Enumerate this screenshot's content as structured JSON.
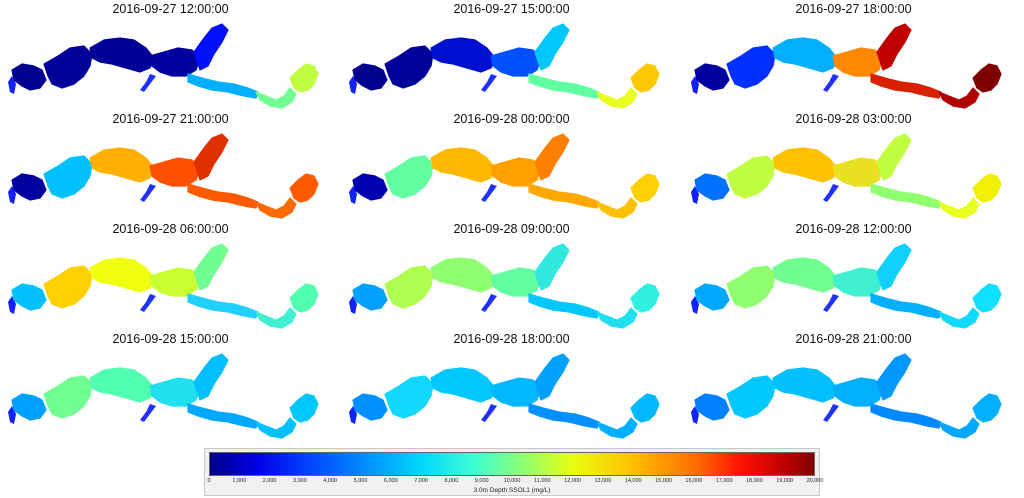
{
  "panels": [
    {
      "time": "2016-09-27 12:00:00",
      "colors": [
        "#000090",
        "#00009a",
        "#000096",
        "#0000a0",
        "#0010ff",
        "#00b0ff",
        "#70ff90",
        "#c0ff40"
      ]
    },
    {
      "time": "2016-09-27 15:00:00",
      "colors": [
        "#000090",
        "#00009a",
        "#0010d0",
        "#0050ff",
        "#00c8ff",
        "#60ffa0",
        "#e8ff20",
        "#ffc800"
      ]
    },
    {
      "time": "2016-09-27 18:00:00",
      "colors": [
        "#0000a0",
        "#0030ff",
        "#00b0ff",
        "#ff8800",
        "#c00000",
        "#d82000",
        "#b00000",
        "#800000"
      ]
    },
    {
      "time": "2016-09-27 21:00:00",
      "colors": [
        "#0000a0",
        "#00c0ff",
        "#ffb000",
        "#ff5000",
        "#e03000",
        "#ff5a00",
        "#ff6a00",
        "#ff5a00"
      ]
    },
    {
      "time": "2016-09-28 00:00:00",
      "colors": [
        "#0000b0",
        "#60ffa0",
        "#ffb800",
        "#ffa000",
        "#ff8000",
        "#ffa800",
        "#ffc000",
        "#ffd000"
      ]
    },
    {
      "time": "2016-09-28 03:00:00",
      "colors": [
        "#0070ff",
        "#c0ff40",
        "#ffc000",
        "#e8e020",
        "#c0ff40",
        "#90ff70",
        "#e8ff20",
        "#f0f000"
      ]
    },
    {
      "time": "2016-09-28 06:00:00",
      "colors": [
        "#00c0ff",
        "#ffd000",
        "#f0ff10",
        "#c8ff30",
        "#70ff90",
        "#20d0ff",
        "#40f0d0",
        "#50ffb0"
      ]
    },
    {
      "time": "2016-09-28 09:00:00",
      "colors": [
        "#00a0ff",
        "#b0ff50",
        "#90ff70",
        "#60ffa0",
        "#30e8e0",
        "#00c8ff",
        "#20e0ef",
        "#30f0df"
      ]
    },
    {
      "time": "2016-09-28 12:00:00",
      "colors": [
        "#00a8ff",
        "#90ff70",
        "#70ff90",
        "#40f0d0",
        "#10d0ff",
        "#00b0ff",
        "#10d8ff",
        "#10e0ff"
      ]
    },
    {
      "time": "2016-09-28 15:00:00",
      "colors": [
        "#00a0ff",
        "#70ff90",
        "#50ffb0",
        "#20e0ef",
        "#00c0ff",
        "#00a8ff",
        "#00c0ff",
        "#00c8ff"
      ]
    },
    {
      "time": "2016-09-28 18:00:00",
      "colors": [
        "#0090ff",
        "#10d8ff",
        "#00c8ff",
        "#00b8ff",
        "#00a0ff",
        "#0090ff",
        "#00b0ff",
        "#00b8ff"
      ]
    },
    {
      "time": "2016-09-28 21:00:00",
      "colors": [
        "#0080ff",
        "#00c8ff",
        "#00c0ff",
        "#00b0ff",
        "#0098ff",
        "#0088ff",
        "#00a8ff",
        "#00b0ff"
      ]
    }
  ],
  "legend": {
    "label": "3.0m Depth SSOL1 (mg/L)",
    "min": 0,
    "max": 20000,
    "ticks": [
      "0",
      "1,000",
      "2,000",
      "3,000",
      "4,000",
      "5,000",
      "6,000",
      "7,000",
      "8,000",
      "9,000",
      "10,000",
      "11,000",
      "12,000",
      "13,000",
      "14,000",
      "15,000",
      "16,000",
      "17,000",
      "18,000",
      "19,000",
      "20,000"
    ]
  }
}
